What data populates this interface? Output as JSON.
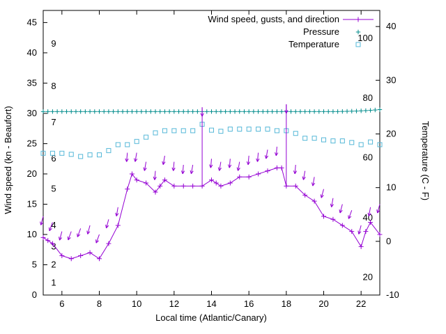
{
  "chart_data": {
    "type": "line",
    "title": "",
    "xlabel": "Local time (Atlantic/Canary)",
    "ylabel_left": "Wind speed (kn - Beaufort)",
    "ylabel_right": "Temperature (C - F)",
    "x_range": [
      5,
      23
    ],
    "y_left_range": [
      0,
      47
    ],
    "y_right_range": [
      -10,
      43
    ],
    "x_ticks": [
      6,
      8,
      10,
      12,
      14,
      16,
      18,
      20,
      22
    ],
    "y_left_ticks": [
      0,
      5,
      10,
      15,
      20,
      25,
      30,
      35,
      40,
      45
    ],
    "y_right_ticks": [
      -10,
      0,
      10,
      20,
      30,
      40
    ],
    "grid": false,
    "legend_position": "top-right-inside",
    "beaufort_scale": [
      {
        "label": "1",
        "kn": 2
      },
      {
        "label": "2",
        "kn": 5
      },
      {
        "label": "3",
        "kn": 8
      },
      {
        "label": "4",
        "kn": 11.5
      },
      {
        "label": "5",
        "kn": 17.5
      },
      {
        "label": "6",
        "kn": 22.5
      },
      {
        "label": "7",
        "kn": 28.5
      },
      {
        "label": "8",
        "kn": 34.5
      },
      {
        "label": "9",
        "kn": 41.5
      }
    ],
    "fahrenheit_scale": [
      {
        "label": "20",
        "c": -6.7
      },
      {
        "label": "40",
        "c": 4.4
      },
      {
        "label": "60",
        "c": 15.6
      },
      {
        "label": "80",
        "c": 26.7
      },
      {
        "label": "100",
        "c": 37.8
      }
    ],
    "legend": [
      {
        "label": "Wind speed, gusts, and direction",
        "marker": "line-plus",
        "color": "#9400d3"
      },
      {
        "label": "Pressure",
        "marker": "plus",
        "color": "#008b8b"
      },
      {
        "label": "Temperature",
        "marker": "square",
        "color": "#56b8d8"
      }
    ],
    "series": {
      "wind": {
        "name": "Wind speed (kn)",
        "color": "#9400d3",
        "axis": "left",
        "x": [
          5.0,
          5.25,
          5.5,
          6.0,
          6.5,
          7.0,
          7.5,
          8.0,
          8.5,
          9.0,
          9.5,
          9.75,
          10.0,
          10.5,
          11.0,
          11.25,
          11.5,
          12.0,
          12.5,
          13.0,
          13.5,
          14.0,
          14.25,
          14.5,
          15.0,
          15.5,
          16.0,
          16.5,
          17.0,
          17.5,
          17.75,
          18.0,
          18.5,
          19.0,
          19.5,
          20.0,
          20.5,
          21.0,
          21.5,
          22.0,
          22.25,
          22.5,
          23.0
        ],
        "y": [
          9.5,
          9.0,
          8.5,
          6.5,
          6.0,
          6.5,
          7.0,
          6.0,
          8.5,
          11.5,
          17.5,
          20.0,
          19.0,
          18.5,
          17.0,
          18.0,
          19.0,
          18.0,
          18.0,
          18.0,
          18.0,
          19.0,
          18.5,
          18.0,
          18.5,
          19.5,
          19.5,
          20.0,
          20.5,
          21.0,
          21.0,
          18.0,
          18.0,
          16.5,
          15.5,
          13.0,
          12.5,
          11.5,
          10.5,
          8.0,
          10.5,
          12.0,
          10.0
        ]
      },
      "gusts": {
        "name": "Gusts (kn) with wind direction arrows",
        "color": "#9400d3",
        "axis": "left",
        "x": [
          5.0,
          5.5,
          6.0,
          6.5,
          7.0,
          7.5,
          8.0,
          8.5,
          9.0,
          9.5,
          10.0,
          10.5,
          11.0,
          11.5,
          12.0,
          12.5,
          13.0,
          13.5,
          14.0,
          14.5,
          15.0,
          15.5,
          16.0,
          16.5,
          17.0,
          17.5,
          18.0,
          18.5,
          19.0,
          19.5,
          20.0,
          20.5,
          21.0,
          21.5,
          22.0,
          22.5,
          23.0
        ],
        "y": [
          13.0,
          12.0,
          10.5,
          10.5,
          11.0,
          11.5,
          10.0,
          12.5,
          14.5,
          23.5,
          23.5,
          22.0,
          20.5,
          23.0,
          22.0,
          21.5,
          21.5,
          31.0,
          22.5,
          22.0,
          22.5,
          22.0,
          23.0,
          23.5,
          24.0,
          24.5,
          31.5,
          21.5,
          20.5,
          19.5,
          17.5,
          16.0,
          15.0,
          14.0,
          11.5,
          14.5,
          15.0
        ],
        "dir_from_deg": [
          15,
          20,
          15,
          20,
          20,
          15,
          20,
          15,
          10,
          5,
          10,
          10,
          5,
          10,
          5,
          5,
          10,
          0,
          5,
          10,
          5,
          10,
          5,
          5,
          10,
          5,
          0,
          5,
          10,
          10,
          15,
          10,
          15,
          20,
          15,
          10,
          15
        ]
      },
      "pressure": {
        "name": "Pressure (inHg)",
        "color": "#008b8b",
        "axis": "left",
        "x_start": 5,
        "x_step": 0.25,
        "values": [
          30.3,
          30.3,
          30.3,
          30.3,
          30.3,
          30.3,
          30.3,
          30.3,
          30.3,
          30.3,
          30.3,
          30.3,
          30.3,
          30.3,
          30.3,
          30.3,
          30.3,
          30.3,
          30.3,
          30.3,
          30.3,
          30.3,
          30.3,
          30.3,
          30.3,
          30.3,
          30.3,
          30.3,
          30.3,
          30.3,
          30.3,
          30.3,
          30.3,
          30.3,
          30.3,
          30.3,
          30.3,
          30.3,
          30.3,
          30.3,
          30.3,
          30.3,
          30.3,
          30.3,
          30.3,
          30.3,
          30.3,
          30.3,
          30.3,
          30.3,
          30.3,
          30.3,
          30.3,
          30.3,
          30.3,
          30.3,
          30.3,
          30.3,
          30.3,
          30.3,
          30.3,
          30.3,
          30.3,
          30.3,
          30.32,
          30.34,
          30.36,
          30.38,
          30.42,
          30.46,
          30.5,
          30.56,
          30.62
        ]
      },
      "temperature": {
        "name": "Temperature (C)",
        "color": "#56b8d8",
        "axis": "right",
        "x_start": 5,
        "x_step": 0.5,
        "values": [
          16.4,
          16.4,
          16.4,
          16.2,
          15.8,
          16.1,
          16.1,
          16.9,
          18.0,
          18.0,
          18.6,
          19.4,
          20.2,
          20.6,
          20.6,
          20.6,
          20.6,
          21.8,
          20.7,
          20.5,
          20.9,
          20.9,
          20.9,
          20.9,
          20.9,
          20.6,
          20.6,
          20.1,
          19.2,
          19.2,
          18.9,
          18.7,
          18.7,
          18.4,
          18.0,
          18.5,
          18.0
        ]
      }
    }
  }
}
